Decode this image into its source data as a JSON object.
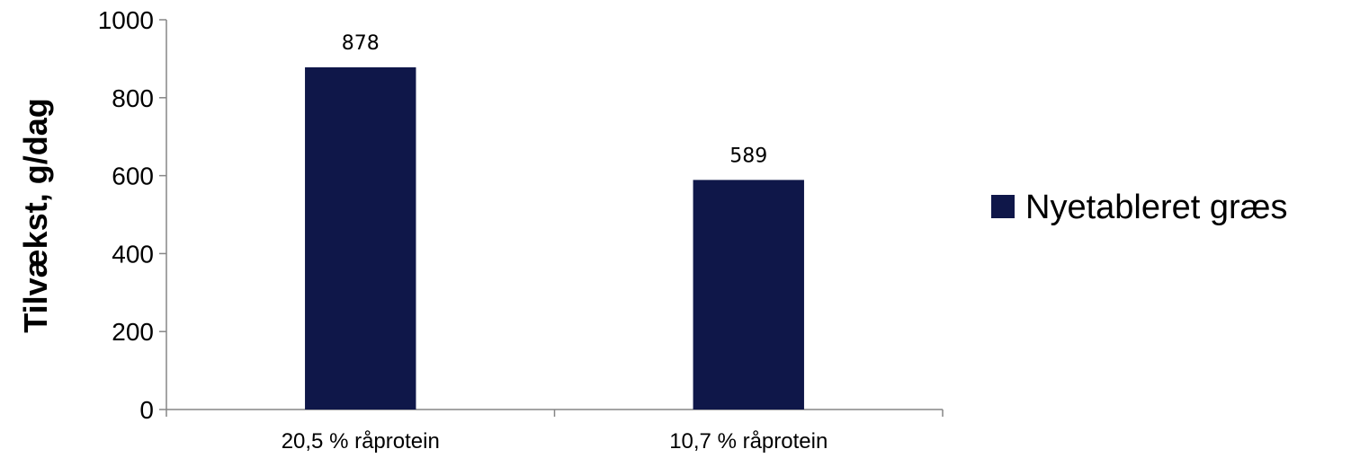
{
  "chart_data": {
    "type": "bar",
    "categories": [
      "20,5 % råprotein",
      "10,7 % råprotein"
    ],
    "series": [
      {
        "name": "Nyetableret græs",
        "values": [
          878,
          589
        ],
        "data_labels": [
          "878",
          "589"
        ],
        "color": "#0f1749"
      }
    ],
    "title": "",
    "xlabel": "",
    "ylabel": "Tilvækst, g/dag",
    "ylim": [
      0,
      1000
    ],
    "y_ticks": [
      0,
      200,
      400,
      600,
      800,
      1000
    ],
    "y_tick_labels": [
      "0",
      "200",
      "400",
      "600",
      "800",
      "1000"
    ],
    "grid": false,
    "legend_position": "right"
  }
}
